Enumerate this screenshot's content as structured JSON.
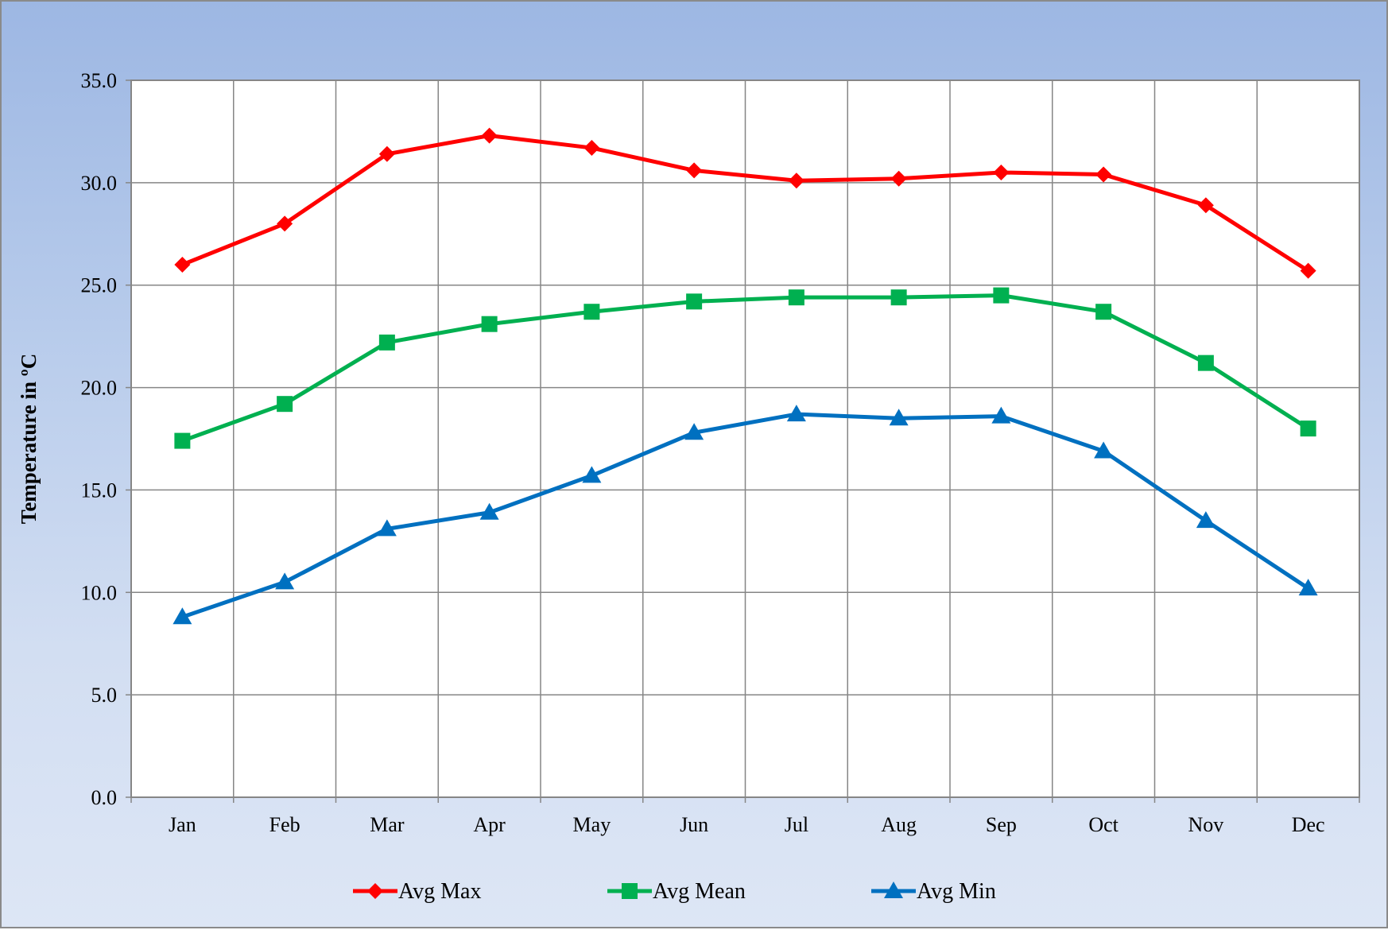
{
  "chart_data": {
    "type": "line",
    "title": "",
    "xlabel": "",
    "ylabel": "Temperature in ºC",
    "categories": [
      "Jan",
      "Feb",
      "Mar",
      "Apr",
      "May",
      "Jun",
      "Jul",
      "Aug",
      "Sep",
      "Oct",
      "Nov",
      "Dec"
    ],
    "ylim": [
      0,
      35
    ],
    "yticks": [
      "0.0",
      "5.0",
      "10.0",
      "15.0",
      "20.0",
      "25.0",
      "30.0",
      "35.0"
    ],
    "grid": true,
    "legend_position": "bottom",
    "series": [
      {
        "name": "Avg Max",
        "color": "#ff0000",
        "marker": "diamond",
        "values": [
          26.0,
          28.0,
          31.4,
          32.3,
          31.7,
          30.6,
          30.1,
          30.2,
          30.5,
          30.4,
          28.9,
          25.7
        ]
      },
      {
        "name": "Avg Mean",
        "color": "#00b050",
        "marker": "square",
        "values": [
          17.4,
          19.2,
          22.2,
          23.1,
          23.7,
          24.2,
          24.4,
          24.4,
          24.5,
          23.7,
          21.2,
          18.0
        ]
      },
      {
        "name": "Avg Min",
        "color": "#0070c0",
        "marker": "triangle",
        "values": [
          8.8,
          10.5,
          13.1,
          13.9,
          15.7,
          17.8,
          18.7,
          18.5,
          18.6,
          16.9,
          13.5,
          10.2
        ]
      }
    ]
  }
}
